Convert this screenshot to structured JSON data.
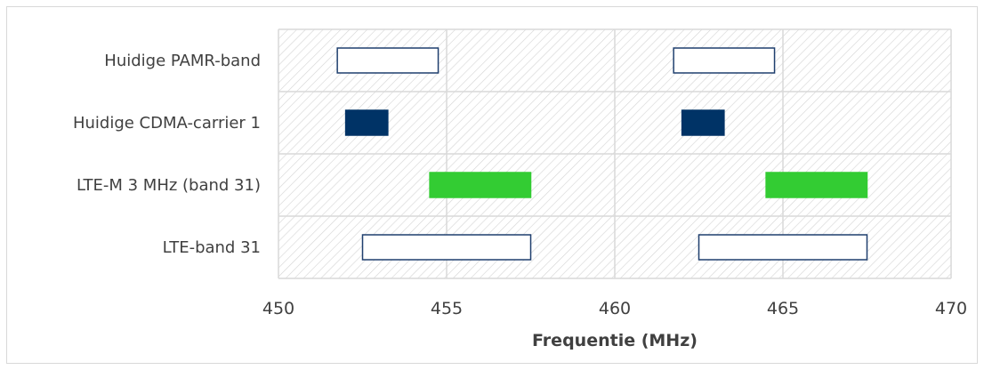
{
  "chart_data": {
    "type": "bar",
    "subtype": "floating-range-horizontal",
    "title": "",
    "xlabel": "Frequentie (MHz)",
    "ylabel": "",
    "xlim": [
      450,
      470
    ],
    "x_ticks": [
      "450",
      "455",
      "460",
      "465",
      "470"
    ],
    "grid": "vertical",
    "background": "diagonal-hatch",
    "categories": [
      "Huidige PAMR-band",
      "Huidige CDMA-carrier 1",
      "LTE-M 3 MHz (band 31)",
      "LTE-band 31"
    ],
    "series": [
      {
        "ranges": [
          [
            [
              451.75,
              454.75
            ],
            [
              461.75,
              464.75
            ]
          ],
          [
            [
              452.0,
              453.25
            ],
            [
              462.0,
              463.25
            ]
          ],
          [
            [
              454.5,
              457.5
            ],
            [
              464.5,
              467.5
            ]
          ],
          [
            [
              452.5,
              457.5
            ],
            [
              462.5,
              467.5
            ]
          ]
        ]
      }
    ],
    "styles": [
      {
        "fill": "#ffffff",
        "stroke": "#1f3f6e"
      },
      {
        "fill": "#003366",
        "stroke": "#003366"
      },
      {
        "fill": "#33cc33",
        "stroke": "#33cc33"
      },
      {
        "fill": "#ffffff",
        "stroke": "#1f3f6e"
      }
    ],
    "colors": {
      "hatch_line": "#d4d4d4",
      "grid": "#d9d9d9",
      "text": "#404040"
    }
  }
}
